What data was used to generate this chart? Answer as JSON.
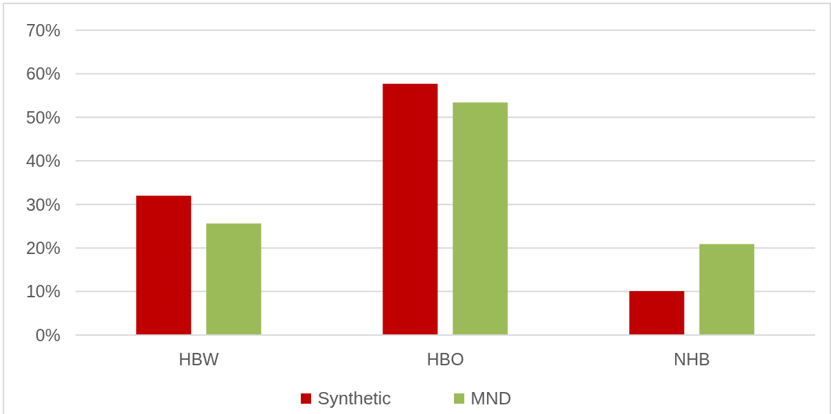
{
  "chart_data": {
    "type": "bar",
    "categories": [
      "HBW",
      "HBO",
      "NHB"
    ],
    "series": [
      {
        "name": "Synthetic",
        "color": "#c00000",
        "values": [
          32.0,
          57.7,
          10.1
        ]
      },
      {
        "name": "MND",
        "color": "#9bbb59",
        "values": [
          25.6,
          53.4,
          20.9
        ]
      }
    ],
    "ylim": [
      0,
      70
    ],
    "yticks": [
      {
        "value": 0,
        "label": "0%"
      },
      {
        "value": 10,
        "label": "10%"
      },
      {
        "value": 20,
        "label": "20%"
      },
      {
        "value": 30,
        "label": "30%"
      },
      {
        "value": 40,
        "label": "40%"
      },
      {
        "value": 50,
        "label": "50%"
      },
      {
        "value": 60,
        "label": "60%"
      },
      {
        "value": 70,
        "label": "70%"
      }
    ],
    "grid": "y",
    "legend": "bottom"
  }
}
